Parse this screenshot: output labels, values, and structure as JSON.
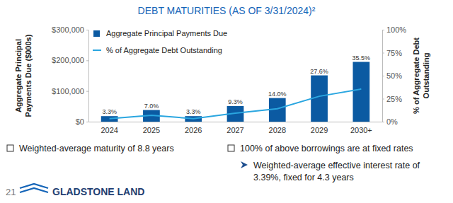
{
  "chart_data": {
    "type": "bar",
    "title": "DEBT MATURITIES (AS OF 3/31/2024)²",
    "categories": [
      "2024",
      "2025",
      "2026",
      "2027",
      "2028",
      "2029",
      "2030+"
    ],
    "series": [
      {
        "name": "Aggregate Principal Payments Due",
        "type": "bar",
        "color": "#0b5aa2",
        "values": [
          18000,
          38000,
          18000,
          51000,
          77000,
          151000,
          195000
        ]
      },
      {
        "name": "% of Aggregate Debt Outstanding",
        "type": "line",
        "color": "#2aa6e0",
        "axis": "y2",
        "data_labels": true,
        "values": [
          3.3,
          7.0,
          3.3,
          9.3,
          14.0,
          27.6,
          35.5
        ],
        "value_labels": [
          "3.3%",
          "7.0%",
          "3.3%",
          "9.3%",
          "14.0%",
          "27.6%",
          "35.5%"
        ]
      }
    ],
    "ylabel": [
      "Aggregate Principal",
      "Payments Due ($000s)"
    ],
    "y2label": [
      "% of Aggregate Debt",
      "Outstanding"
    ],
    "ylim": [
      0,
      300000
    ],
    "yticks": [
      {
        "value": 0,
        "label": "$0"
      },
      {
        "value": 100000,
        "label": "$100,000"
      },
      {
        "value": 200000,
        "label": "$200,000"
      },
      {
        "value": 300000,
        "label": "$300,000"
      }
    ],
    "y2lim": [
      0,
      100
    ],
    "y2ticks": [
      {
        "value": 0,
        "label": "0%"
      },
      {
        "value": 25,
        "label": "25%"
      },
      {
        "value": 50,
        "label": "50%"
      },
      {
        "value": 75,
        "label": "75%"
      },
      {
        "value": 100,
        "label": "100%"
      }
    ],
    "grid": false,
    "legend": "upper left",
    "notes": [
      "Weighted-average maturity of 8.8 years",
      "100% of above borrowings are at fixed rates"
    ],
    "sub_note": [
      "Weighted-average effective interest rate of",
      "3.39%, fixed for 4.3 years"
    ],
    "page_number": "21",
    "logo": "GLADSTONE LAND"
  }
}
